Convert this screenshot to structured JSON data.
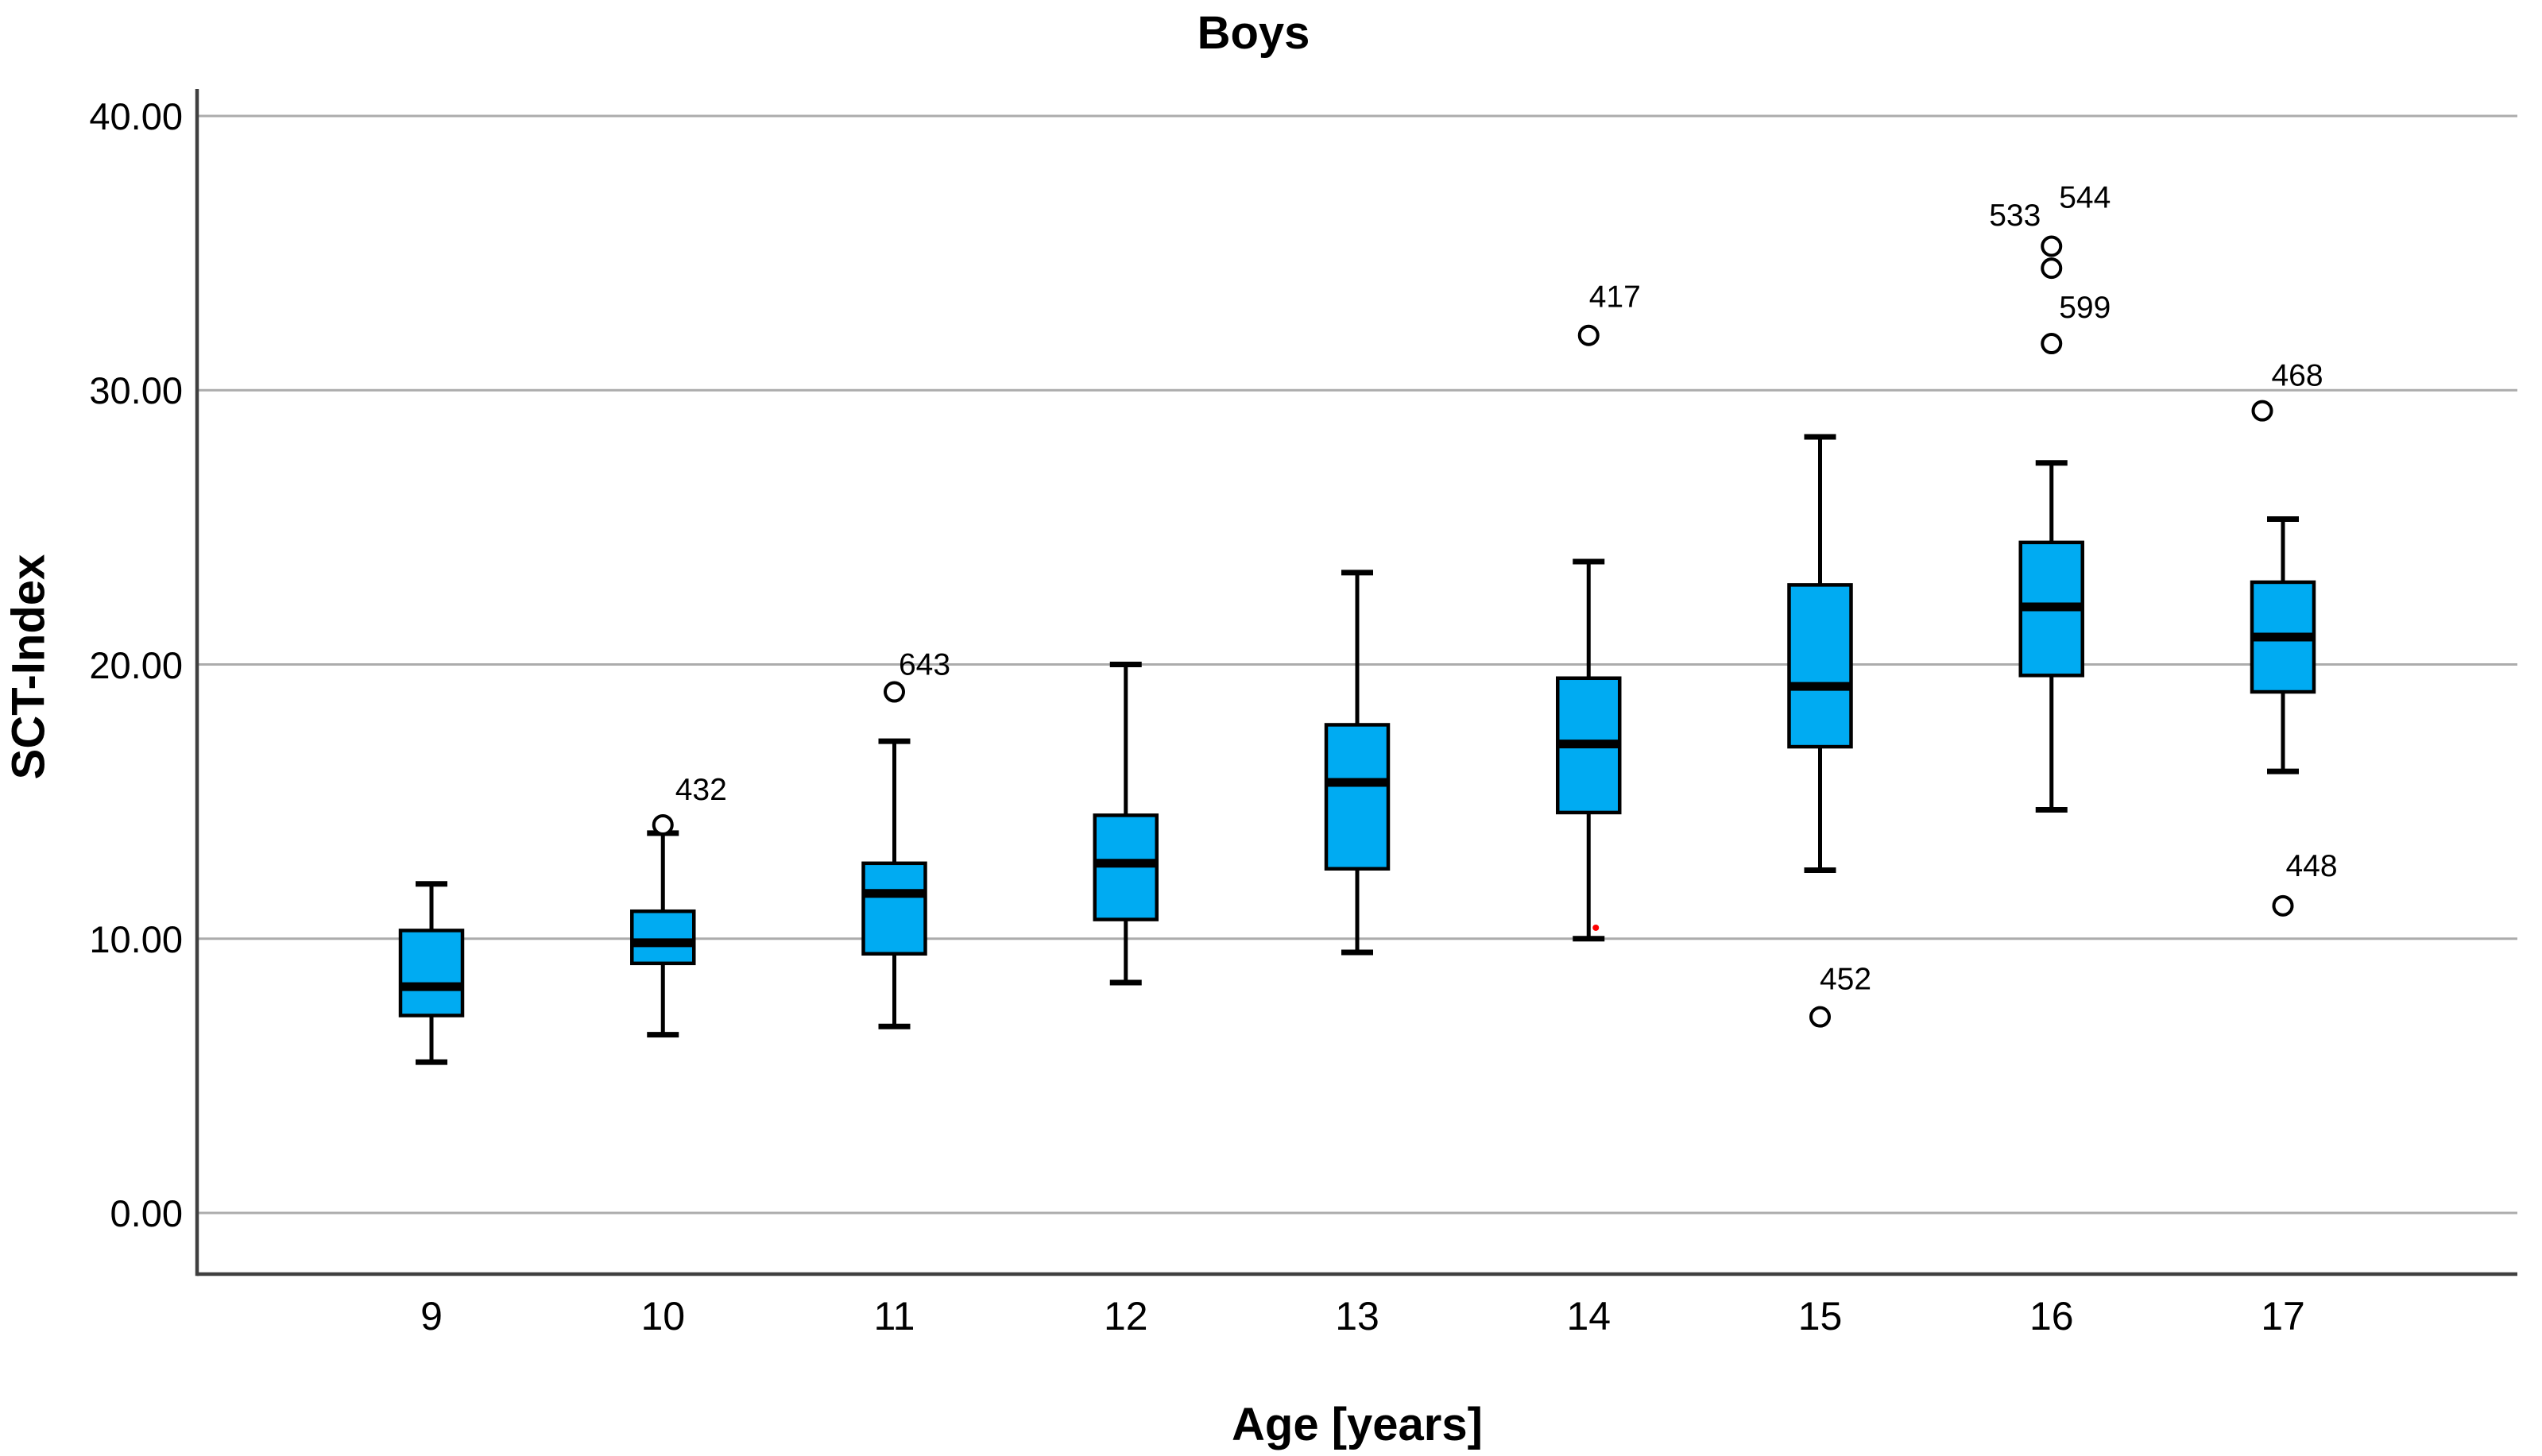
{
  "chart_data": {
    "type": "boxplot",
    "title": "Boys",
    "xlabel": "Age [years]",
    "ylabel": "SCT-Index",
    "categories": [
      "9",
      "10",
      "11",
      "12",
      "13",
      "14",
      "15",
      "16",
      "17"
    ],
    "yticks": [
      {
        "value": 40,
        "label": "40.00"
      },
      {
        "value": 30,
        "label": "30.00"
      },
      {
        "value": 20,
        "label": "20.00"
      },
      {
        "value": 10,
        "label": "10.00"
      },
      {
        "value": 0,
        "label": "0.00"
      }
    ],
    "ylim": [
      -2.2,
      41
    ],
    "grid": "horizontal",
    "series": [
      {
        "category": "9",
        "whisker_low": 5.5,
        "q1": 7.2,
        "median": 8.25,
        "q3": 10.3,
        "whisker_high": 12.0,
        "outliers": []
      },
      {
        "category": "10",
        "whisker_low": 6.5,
        "q1": 9.1,
        "median": 9.85,
        "q3": 11.0,
        "whisker_high": 13.85,
        "outliers": [
          {
            "label": "432",
            "value": 14.15,
            "x_off": 0,
            "label_dx": 48,
            "label_dy": -44
          }
        ]
      },
      {
        "category": "11",
        "whisker_low": 6.8,
        "q1": 9.45,
        "median": 11.65,
        "q3": 12.75,
        "whisker_high": 17.2,
        "outliers": [
          {
            "label": "643",
            "value": 19.0,
            "x_off": 0,
            "label_dx": 38,
            "label_dy": -34
          }
        ]
      },
      {
        "category": "12",
        "whisker_low": 8.4,
        "q1": 10.7,
        "median": 12.75,
        "q3": 14.5,
        "whisker_high": 20.0,
        "outliers": []
      },
      {
        "category": "13",
        "whisker_low": 9.5,
        "q1": 12.55,
        "median": 15.7,
        "q3": 17.8,
        "whisker_high": 23.35,
        "outliers": []
      },
      {
        "category": "14",
        "whisker_low": 10.0,
        "q1": 14.6,
        "median": 17.1,
        "q3": 19.5,
        "whisker_high": 23.75,
        "outliers": [
          {
            "label": "417",
            "value": 32.0,
            "x_off": 0,
            "label_dx": 33,
            "label_dy": -48
          }
        ]
      },
      {
        "category": "15",
        "whisker_low": 12.5,
        "q1": 17.0,
        "median": 19.2,
        "q3": 22.9,
        "whisker_high": 28.3,
        "outliers": [
          {
            "label": "452",
            "value": 7.15,
            "x_off": 0,
            "label_dx": 32,
            "label_dy": -47
          }
        ]
      },
      {
        "category": "16",
        "whisker_low": 14.7,
        "q1": 19.6,
        "median": 22.1,
        "q3": 24.45,
        "whisker_high": 27.35,
        "outliers": [
          {
            "label": "599",
            "value": 31.7,
            "x_off": 0,
            "label_dx": 42,
            "label_dy": -45
          },
          {
            "label": "533",
            "value": 34.45,
            "x_off": 0,
            "label_dx": -46,
            "label_dy": -66
          },
          {
            "label": "544",
            "value": 35.25,
            "x_off": 0,
            "label_dx": 42,
            "label_dy": -61
          }
        ]
      },
      {
        "category": "17",
        "whisker_low": 16.1,
        "q1": 19.0,
        "median": 21.0,
        "q3": 23.0,
        "whisker_high": 25.3,
        "outliers": [
          {
            "label": "448",
            "value": 11.2,
            "x_off": 0,
            "label_dx": 36,
            "label_dy": -50
          },
          {
            "label": "468",
            "value": 29.25,
            "x_off": -26,
            "label_dx": 44,
            "label_dy": -44
          }
        ]
      }
    ],
    "extra_point": {
      "category": "14",
      "value": 10.4,
      "x_off": 9,
      "color": "#ff0000"
    },
    "colors": {
      "box_fill": "#00ABF2",
      "box_border": "#000000",
      "median": "#000000",
      "whisker": "#000000",
      "outlier_stroke": "#000000",
      "outlier_fill": "#ffffff",
      "gridline": "#ACACAC",
      "axis": "#3F3F3F",
      "background": "#ffffff",
      "text": "#000000"
    }
  }
}
